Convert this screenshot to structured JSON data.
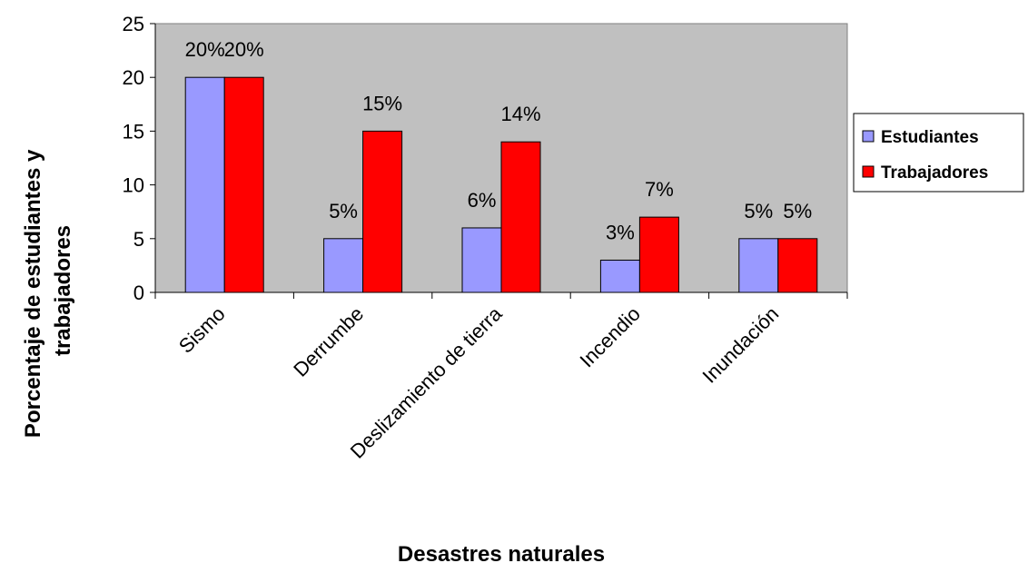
{
  "chart_data": {
    "type": "bar",
    "title": "",
    "xlabel": "Desastres naturales",
    "ylabel_lines": [
      "Porcentaje de estudiantes y",
      "trabajadores"
    ],
    "categories": [
      "Sismo",
      "Derrumbe",
      "Deslizamiento de tierra",
      "Incendio",
      "Inundación"
    ],
    "series": [
      {
        "name": "Estudiantes",
        "color": "#9999ff",
        "values": [
          20,
          5,
          6,
          3,
          5
        ],
        "labels": [
          "20%",
          "5%",
          "6%",
          "3%",
          "5%"
        ]
      },
      {
        "name": "Trabajadores",
        "color": "#ff0000",
        "values": [
          20,
          15,
          14,
          7,
          5
        ],
        "labels": [
          "20%",
          "15%",
          "14%",
          "7%",
          "5%"
        ]
      }
    ],
    "ylim": [
      0,
      25
    ],
    "yticks": [
      0,
      5,
      10,
      15,
      20,
      25
    ],
    "plot_background": "#c0c0c0",
    "grid": false,
    "legend_position": "right"
  }
}
